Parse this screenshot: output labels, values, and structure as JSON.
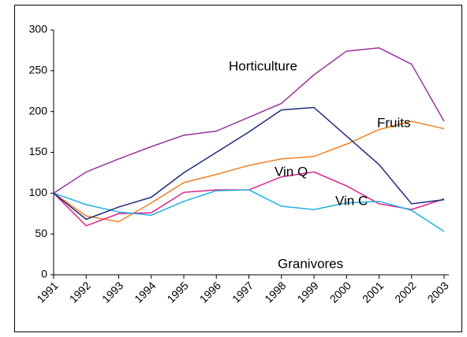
{
  "chart_data": {
    "type": "line",
    "categories": [
      "1991",
      "1992",
      "1993",
      "1994",
      "1995",
      "1996",
      "1997",
      "1998",
      "1999",
      "2000",
      "2001",
      "2002",
      "2003"
    ],
    "series": [
      {
        "name": "Horticulture",
        "color": "#993399",
        "values": [
          100,
          126,
          142,
          157,
          171,
          176,
          193,
          210,
          245,
          274,
          278,
          258,
          188
        ]
      },
      {
        "name": "Fruits",
        "color": "#f08020",
        "values": [
          100,
          72,
          65,
          88,
          113,
          123,
          134,
          142,
          145,
          160,
          178,
          188,
          179
        ]
      },
      {
        "name": "Vin Q",
        "color": "#e0208a",
        "values": [
          100,
          60,
          75,
          76,
          101,
          104,
          104,
          120,
          126,
          109,
          87,
          80,
          93
        ]
      },
      {
        "name": "Vin C",
        "color": "#20b0e0",
        "values": [
          100,
          86,
          77,
          73,
          90,
          103,
          104,
          84,
          80,
          88,
          90,
          79,
          53
        ]
      },
      {
        "name": "Granivores",
        "color": "#1f2a7a",
        "values": [
          100,
          68,
          83,
          95,
          125,
          150,
          175,
          202,
          205,
          170,
          135,
          87,
          92
        ]
      }
    ],
    "ylim": [
      0,
      300
    ],
    "yticks": [
      0,
      50,
      100,
      150,
      200,
      250,
      300
    ]
  }
}
